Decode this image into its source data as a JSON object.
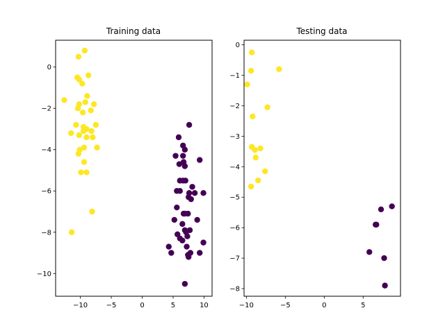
{
  "chart_data": [
    {
      "type": "scatter",
      "title": "Training data",
      "xlim": [
        -14,
        11.3
      ],
      "ylim": [
        -11.1,
        1.3
      ],
      "xticks": [
        -10,
        -5,
        0,
        5,
        10
      ],
      "yticks": [
        0,
        -2,
        -4,
        -6,
        -8,
        -10
      ],
      "xlabel": "",
      "ylabel": "",
      "grid": false,
      "series": [
        {
          "color": "#fde725",
          "points": [
            [
              -9.3,
              0.8
            ],
            [
              -10.3,
              0.5
            ],
            [
              -8.7,
              -0.4
            ],
            [
              -10.5,
              -0.5
            ],
            [
              -10.2,
              -0.6
            ],
            [
              -9.7,
              -0.8
            ],
            [
              -12.6,
              -1.6
            ],
            [
              -8.9,
              -1.4
            ],
            [
              -10.2,
              -1.8
            ],
            [
              -10.4,
              -2.0
            ],
            [
              -9.2,
              -1.7
            ],
            [
              -7.8,
              -1.8
            ],
            [
              -9.6,
              -2.2
            ],
            [
              -8.3,
              -2.1
            ],
            [
              -10.7,
              -2.8
            ],
            [
              -9.5,
              -2.9
            ],
            [
              -9.0,
              -3.0
            ],
            [
              -9.5,
              -3.1
            ],
            [
              -7.5,
              -2.8
            ],
            [
              -8.2,
              -3.1
            ],
            [
              -11.5,
              -3.2
            ],
            [
              -10.2,
              -3.3
            ],
            [
              -9.0,
              -3.4
            ],
            [
              -8.0,
              -3.4
            ],
            [
              -9.4,
              -3.9
            ],
            [
              -10.1,
              -4.0
            ],
            [
              -10.3,
              -4.2
            ],
            [
              -7.3,
              -3.9
            ],
            [
              -9.4,
              -4.6
            ],
            [
              -9.9,
              -5.1
            ],
            [
              -9.0,
              -5.1
            ],
            [
              -8.1,
              -7.0
            ],
            [
              -11.4,
              -8.0
            ]
          ]
        },
        {
          "color": "#440154",
          "points": [
            [
              7.6,
              -2.8
            ],
            [
              5.9,
              -3.4
            ],
            [
              6.6,
              -3.8
            ],
            [
              6.9,
              -4.0
            ],
            [
              5.4,
              -4.3
            ],
            [
              6.6,
              -4.3
            ],
            [
              6.7,
              -4.6
            ],
            [
              6.0,
              -4.7
            ],
            [
              6.9,
              -4.8
            ],
            [
              9.3,
              -4.5
            ],
            [
              6.1,
              -5.5
            ],
            [
              6.6,
              -5.5
            ],
            [
              7.0,
              -5.5
            ],
            [
              5.6,
              -6.0
            ],
            [
              6.1,
              -6.0
            ],
            [
              8.1,
              -5.8
            ],
            [
              7.6,
              -6.1
            ],
            [
              8.5,
              -6.1
            ],
            [
              7.5,
              -6.3
            ],
            [
              7.9,
              -6.4
            ],
            [
              9.9,
              -6.1
            ],
            [
              5.6,
              -6.8
            ],
            [
              6.7,
              -7.1
            ],
            [
              6.9,
              -7.1
            ],
            [
              7.4,
              -7.1
            ],
            [
              5.2,
              -7.4
            ],
            [
              8.9,
              -7.4
            ],
            [
              6.5,
              -7.6
            ],
            [
              6.9,
              -7.9
            ],
            [
              7.7,
              -7.9
            ],
            [
              5.7,
              -8.1
            ],
            [
              6.1,
              -8.3
            ],
            [
              7.1,
              -8.0
            ],
            [
              7.3,
              -8.2
            ],
            [
              6.5,
              -8.4
            ],
            [
              4.3,
              -8.7
            ],
            [
              9.9,
              -8.5
            ],
            [
              7.2,
              -8.7
            ],
            [
              4.7,
              -9.0
            ],
            [
              7.4,
              -9.1
            ],
            [
              7.8,
              -9.0
            ],
            [
              9.3,
              -9.0
            ],
            [
              7.5,
              -9.2
            ],
            [
              6.9,
              -10.5
            ]
          ]
        }
      ]
    },
    {
      "type": "scatter",
      "title": "Testing data",
      "xlim": [
        -10.3,
        9.8
      ],
      "ylim": [
        -8.25,
        0.15
      ],
      "xticks": [
        -10,
        -5,
        0,
        5
      ],
      "yticks": [
        0,
        -1,
        -2,
        -3,
        -4,
        -5,
        -6,
        -7,
        -8
      ],
      "xlabel": "",
      "ylabel": "",
      "grid": false,
      "series": [
        {
          "color": "#fde725",
          "points": [
            [
              -9.3,
              -0.25
            ],
            [
              -5.8,
              -0.8
            ],
            [
              -9.4,
              -0.85
            ],
            [
              -9.9,
              -1.3
            ],
            [
              -7.3,
              -2.05
            ],
            [
              -9.2,
              -2.35
            ],
            [
              -9.3,
              -3.35
            ],
            [
              -8.9,
              -3.45
            ],
            [
              -8.2,
              -3.4
            ],
            [
              -8.8,
              -3.7
            ],
            [
              -7.6,
              -4.15
            ],
            [
              -8.5,
              -4.45
            ],
            [
              -9.4,
              -4.65
            ]
          ]
        },
        {
          "color": "#440154",
          "points": [
            [
              8.7,
              -5.3
            ],
            [
              7.3,
              -5.4
            ],
            [
              6.7,
              -5.9
            ],
            [
              6.6,
              -5.9
            ],
            [
              5.8,
              -6.8
            ],
            [
              7.7,
              -7.0
            ],
            [
              7.8,
              -7.9
            ]
          ]
        }
      ]
    }
  ]
}
